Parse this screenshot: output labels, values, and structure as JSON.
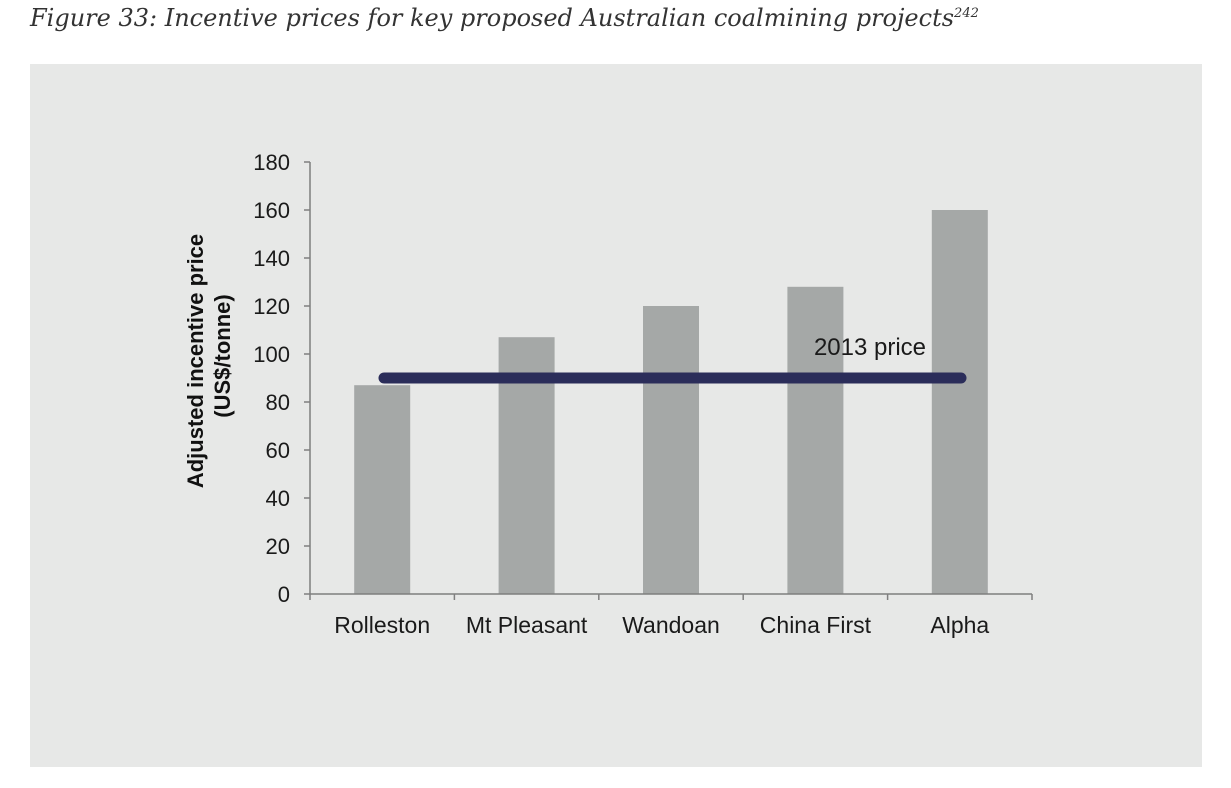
{
  "figure": {
    "caption": "Figure 33: Incentive prices for key proposed Australian coalmining projects",
    "footnote": "242"
  },
  "colors": {
    "panel": "#e7e8e7",
    "bar": "#a5a8a7",
    "reference_line": "#2b2d5a",
    "axis": "#7f7f7f"
  },
  "chart_data": {
    "type": "bar",
    "categories": [
      "Rolleston",
      "Mt Pleasant",
      "Wandoan",
      "China First",
      "Alpha"
    ],
    "values": [
      87,
      107,
      120,
      128,
      160
    ],
    "ylabel_line1": "Adjusted incentive price",
    "ylabel_line2": "(US$/tonne)",
    "ylim": [
      0,
      180
    ],
    "yticks": [
      0,
      20,
      40,
      60,
      80,
      100,
      120,
      140,
      160,
      180
    ],
    "grid": false,
    "legend": "none",
    "reference_line": {
      "label": "2013 price",
      "value": 90
    }
  }
}
